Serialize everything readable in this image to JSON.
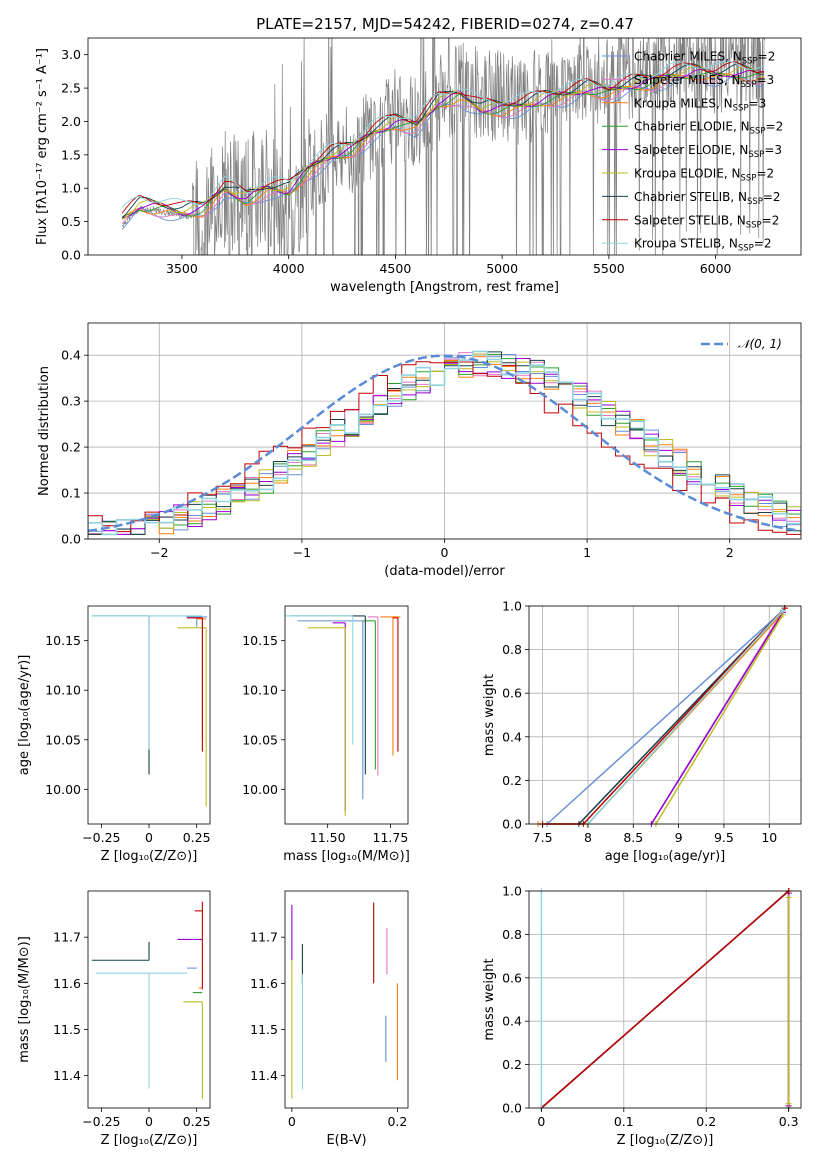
{
  "figure": {
    "title": "PLATE=2157, MJD=54242, FIBERID=0274, z=0.47",
    "colors": [
      "#6890d8",
      "#e377c2",
      "#ff7f0e",
      "#2ca02c",
      "#9400d3",
      "#bcbd22",
      "#17404b",
      "#c00000",
      "#8fd4e0"
    ]
  },
  "chart_data": [
    {
      "id": "spectrum",
      "type": "line",
      "title": "PLATE=2157, MJD=54242, FIBERID=0274, z=0.47",
      "xlabel": "wavelength [Angstrom, rest frame]",
      "ylabel": "Flux [fλ10⁻¹⁷ erg cm⁻² s⁻¹ A⁻¹]",
      "xlim": [
        3060,
        6400
      ],
      "ylim": [
        0,
        3.25
      ],
      "xticks": [
        3500,
        4000,
        4500,
        5000,
        5500,
        6000
      ],
      "yticks": [
        0.0,
        0.5,
        1.0,
        1.5,
        2.0,
        2.5,
        3.0
      ],
      "data_color": "#808080",
      "data_points": [
        [
          3220,
          0.45
        ],
        [
          3300,
          0.7
        ],
        [
          3400,
          0.65
        ],
        [
          3500,
          0.6
        ],
        [
          3600,
          0.55
        ],
        [
          3700,
          1.0
        ],
        [
          3800,
          0.9
        ],
        [
          3900,
          1.1
        ],
        [
          4000,
          0.5
        ],
        [
          4100,
          1.2
        ],
        [
          4200,
          1.6
        ],
        [
          4300,
          1.5
        ],
        [
          4400,
          1.9
        ],
        [
          4500,
          2.1
        ],
        [
          4600,
          2.0
        ],
        [
          4700,
          2.3
        ],
        [
          4800,
          2.5
        ],
        [
          4900,
          2.4
        ],
        [
          5000,
          2.4
        ],
        [
          5100,
          2.3
        ],
        [
          5200,
          2.5
        ],
        [
          5300,
          2.6
        ],
        [
          5400,
          2.7
        ],
        [
          5500,
          2.6
        ],
        [
          5600,
          2.7
        ],
        [
          5700,
          2.8
        ],
        [
          5800,
          2.9
        ],
        [
          5900,
          2.9
        ],
        [
          6000,
          2.8
        ],
        [
          6100,
          2.9
        ],
        [
          6200,
          2.9
        ]
      ],
      "model_points": [
        [
          3220,
          0.55
        ],
        [
          3300,
          0.75
        ],
        [
          3400,
          0.72
        ],
        [
          3500,
          0.65
        ],
        [
          3600,
          0.7
        ],
        [
          3700,
          1.0
        ],
        [
          3800,
          0.85
        ],
        [
          3900,
          1.0
        ],
        [
          4000,
          0.98
        ],
        [
          4100,
          1.3
        ],
        [
          4200,
          1.5
        ],
        [
          4300,
          1.6
        ],
        [
          4400,
          1.85
        ],
        [
          4500,
          2.0
        ],
        [
          4600,
          1.95
        ],
        [
          4700,
          2.3
        ],
        [
          4800,
          2.4
        ],
        [
          4900,
          2.2
        ],
        [
          5000,
          2.2
        ],
        [
          5100,
          2.25
        ],
        [
          5200,
          2.35
        ],
        [
          5300,
          2.4
        ],
        [
          5400,
          2.5
        ],
        [
          5500,
          2.45
        ],
        [
          5600,
          2.55
        ],
        [
          5700,
          2.6
        ],
        [
          5800,
          2.7
        ],
        [
          5900,
          2.75
        ],
        [
          6000,
          2.7
        ],
        [
          6100,
          2.75
        ],
        [
          6200,
          2.7
        ]
      ],
      "legend_position": "upper right",
      "series": [
        {
          "name": "Chabrier MILES, N",
          "sub": "SSP",
          "suffix": "=2"
        },
        {
          "name": "Salpeter MILES, N",
          "sub": "SSP",
          "suffix": "=3"
        },
        {
          "name": "Kroupa MILES, N",
          "sub": "SSP",
          "suffix": "=3"
        },
        {
          "name": "Chabrier ELODIE, N",
          "sub": "SSP",
          "suffix": "=2"
        },
        {
          "name": "Salpeter ELODIE, N",
          "sub": "SSP",
          "suffix": "=3"
        },
        {
          "name": "Kroupa ELODIE, N",
          "sub": "SSP",
          "suffix": "=2"
        },
        {
          "name": "Chabrier STELIB, N",
          "sub": "SSP",
          "suffix": "=2"
        },
        {
          "name": "Salpeter STELIB, N",
          "sub": "SSP",
          "suffix": "=2"
        },
        {
          "name": "Kroupa STELIB, N",
          "sub": "SSP",
          "suffix": "=2"
        }
      ]
    },
    {
      "id": "residuals",
      "type": "line",
      "xlabel": "(data-model)/error",
      "ylabel": "Normed distribution",
      "xlim": [
        -2.5,
        2.5
      ],
      "ylim": [
        0,
        0.47
      ],
      "xticks": [
        -2,
        -1,
        0,
        1,
        2
      ],
      "yticks": [
        0.0,
        0.1,
        0.2,
        0.3,
        0.4
      ],
      "grid": true,
      "legend_label": "𝒩(0, 1)",
      "legend_position": "upper right",
      "gaussian": {
        "mean": 0,
        "sigma": 1,
        "color": "#5b8ad6"
      },
      "hist_profile": {
        "bin_width": 0.1,
        "center": 0.3,
        "sigma": 1.05,
        "peak": 0.38
      }
    },
    {
      "id": "age_vs_Z",
      "type": "scatter",
      "xlabel": "Z [log₁₀(Z/Z⊙)]",
      "ylabel": "age  [log₁₀(age/yr)]",
      "xlim": [
        -0.32,
        0.32
      ],
      "ylim": [
        9.965,
        10.185
      ],
      "xticks": [
        -0.25,
        0.0,
        0.25
      ],
      "yticks": [
        10.0,
        10.05,
        10.1,
        10.15
      ],
      "grid": false,
      "points": [
        {
          "x": 0.25,
          "y": 10.174,
          "xerr": [
            0.055,
            0.055
          ],
          "yerr": [
            0.01,
            0.0
          ],
          "c": 0
        },
        {
          "x": 0.28,
          "y": 10.172,
          "xerr": [
            0.03,
            0.02
          ],
          "yerr": [
            0.12,
            0.0
          ],
          "c": 2
        },
        {
          "x": 0.0,
          "y": 10.175,
          "xerr": [
            0.3,
            0.0
          ],
          "yerr": [
            0.16,
            0.0
          ],
          "c": 6
        },
        {
          "x": 0.3,
          "y": 10.163,
          "xerr": [
            0.15,
            0.0
          ],
          "yerr": [
            0.18,
            0.0
          ],
          "c": 5
        },
        {
          "x": 0.28,
          "y": 10.173,
          "xerr": [
            0.08,
            0.0
          ],
          "yerr": [
            0.135,
            0.0
          ],
          "c": 7
        },
        {
          "x": 0.0,
          "y": 10.175,
          "xerr": [
            0.3,
            0.28
          ],
          "yerr": [
            0.135,
            0.0
          ],
          "c": 8
        }
      ]
    },
    {
      "id": "age_vs_mass",
      "type": "scatter",
      "xlabel": "mass [log₁₀(M/M⊙)]",
      "ylabel": "",
      "xlim": [
        11.33,
        11.82
      ],
      "ylim": [
        9.965,
        10.185
      ],
      "xticks": [
        11.5,
        11.75
      ],
      "xtick_labels": [
        "11.50",
        "11.75"
      ],
      "yticks": [
        10.0,
        10.05,
        10.1,
        10.15
      ],
      "grid": false,
      "points": [
        {
          "x": 11.64,
          "y": 10.17,
          "xerr": [
            0.26,
            0.0
          ],
          "yerr": [
            0.18,
            0.0
          ],
          "c": 0
        },
        {
          "x": 11.7,
          "y": 10.174,
          "xerr": [
            0.04,
            0.0
          ],
          "yerr": [
            0.16,
            0.0
          ],
          "c": 1
        },
        {
          "x": 11.76,
          "y": 10.174,
          "xerr": [
            0.05,
            0.03
          ],
          "yerr": [
            0.14,
            0.0
          ],
          "c": 2
        },
        {
          "x": 11.69,
          "y": 10.17,
          "xerr": [
            0.05,
            0.0
          ],
          "yerr": [
            0.15,
            0.0
          ],
          "c": 3
        },
        {
          "x": 11.57,
          "y": 10.168,
          "xerr": [
            0.05,
            0.0
          ],
          "yerr": [
            0.19,
            0.0
          ],
          "c": 4
        },
        {
          "x": 11.57,
          "y": 10.163,
          "xerr": [
            0.15,
            0.0
          ],
          "yerr": [
            0.19,
            0.0
          ],
          "c": 5
        },
        {
          "x": 11.65,
          "y": 10.175,
          "xerr": [
            0.3,
            0.0
          ],
          "yerr": [
            0.16,
            0.0
          ],
          "c": 6
        },
        {
          "x": 11.78,
          "y": 10.173,
          "xerr": [
            0.02,
            0.0
          ],
          "yerr": [
            0.135,
            0.0
          ],
          "c": 7
        },
        {
          "x": 11.6,
          "y": 10.175,
          "xerr": [
            0.28,
            0.0
          ],
          "yerr": [
            0.13,
            0.0
          ],
          "c": 8
        }
      ]
    },
    {
      "id": "massweight_vs_age",
      "type": "line",
      "xlabel": "age  [log₁₀(age/yr)]",
      "ylabel": "mass weight",
      "xlim": [
        7.35,
        10.35
      ],
      "ylim": [
        0,
        1
      ],
      "xticks": [
        7.5,
        8.0,
        8.5,
        9.0,
        9.5,
        10.0
      ],
      "yticks": [
        0.0,
        0.2,
        0.4,
        0.6,
        0.8,
        1.0
      ],
      "grid": true,
      "series": [
        {
          "c": 0,
          "points": [
            [
              7.55,
              0.0
            ],
            [
              10.15,
              0.98
            ]
          ]
        },
        {
          "c": 1,
          "points": [
            [
              8.7,
              0.0
            ],
            [
              10.17,
              0.99
            ]
          ]
        },
        {
          "c": 2,
          "points": [
            [
              7.45,
              0.0
            ],
            [
              8.0,
              0.0
            ],
            [
              10.15,
              0.97
            ]
          ]
        },
        {
          "c": 3,
          "points": [
            [
              8.0,
              0.0
            ],
            [
              10.15,
              0.98
            ]
          ]
        },
        {
          "c": 4,
          "points": [
            [
              8.7,
              0.0
            ],
            [
              10.15,
              0.97
            ]
          ]
        },
        {
          "c": 5,
          "points": [
            [
              8.75,
              0.0
            ],
            [
              10.15,
              0.96
            ]
          ]
        },
        {
          "c": 6,
          "points": [
            [
              7.9,
              0.0
            ],
            [
              10.17,
              0.99
            ]
          ]
        },
        {
          "c": 7,
          "points": [
            [
              7.5,
              0.0
            ],
            [
              7.95,
              0.0
            ],
            [
              10.17,
              0.99
            ]
          ]
        },
        {
          "c": 8,
          "points": [
            [
              8.0,
              0.0
            ],
            [
              10.15,
              0.98
            ]
          ]
        }
      ]
    },
    {
      "id": "mass_vs_Z",
      "type": "scatter",
      "xlabel": "Z [log₁₀(Z/Z⊙)]",
      "ylabel": "mass [log₁₀(M/M⊙)]",
      "xlim": [
        -0.32,
        0.32
      ],
      "ylim": [
        11.33,
        11.8
      ],
      "xticks": [
        -0.25,
        0.0,
        0.25
      ],
      "yticks": [
        11.4,
        11.5,
        11.6,
        11.7
      ],
      "grid": false,
      "points": [
        {
          "x": 0.25,
          "y": 11.633,
          "xerr": [
            0.05,
            0.0
          ],
          "yerr": [
            0.0,
            0.0
          ],
          "c": 0
        },
        {
          "x": 0.28,
          "y": 11.59,
          "xerr": [
            0.02,
            0.0
          ],
          "yerr": [
            0.0,
            0.0
          ],
          "c": 2
        },
        {
          "x": 0.28,
          "y": 11.58,
          "xerr": [
            0.05,
            0.0
          ],
          "yerr": [
            0.0,
            0.0
          ],
          "c": 3
        },
        {
          "x": 0.28,
          "y": 11.695,
          "xerr": [
            0.13,
            0.0
          ],
          "yerr": [
            0.0,
            0.0
          ],
          "c": 4
        },
        {
          "x": 0.28,
          "y": 11.56,
          "xerr": [
            0.1,
            0.0
          ],
          "yerr": [
            0.21,
            0.0
          ],
          "c": 5
        },
        {
          "x": 0.0,
          "y": 11.65,
          "xerr": [
            0.3,
            0.0
          ],
          "yerr": [
            0.0,
            0.04
          ],
          "c": 6
        },
        {
          "x": 0.28,
          "y": 11.757,
          "xerr": [
            0.04,
            0.0
          ],
          "yerr": [
            0.17,
            0.02
          ],
          "c": 7
        },
        {
          "x": 0.0,
          "y": 11.622,
          "xerr": [
            0.28,
            0.2
          ],
          "yerr": [
            0.25,
            0.0
          ],
          "c": 8
        }
      ]
    },
    {
      "id": "mass_vs_ebv",
      "type": "scatter",
      "xlabel": "E(B-V)",
      "ylabel": "",
      "xlim": [
        -0.013,
        0.22
      ],
      "ylim": [
        11.33,
        11.8
      ],
      "xticks": [
        0.0,
        0.2
      ],
      "xtick_labels": [
        "0",
        "0.2"
      ],
      "yticks": [
        11.4,
        11.5,
        11.6,
        11.7
      ],
      "grid": false,
      "points": [
        {
          "x": 0.178,
          "y": 11.43,
          "xerr": [
            0,
            0
          ],
          "yerr": [
            0.0,
            0.1
          ],
          "c": 0
        },
        {
          "x": 0.18,
          "y": 11.62,
          "xerr": [
            0,
            0
          ],
          "yerr": [
            0.0,
            0.1
          ],
          "c": 1
        },
        {
          "x": 0.2,
          "y": 11.39,
          "xerr": [
            0,
            0
          ],
          "yerr": [
            0.0,
            0.21
          ],
          "c": 2
        },
        {
          "x": 0.0,
          "y": 11.65,
          "xerr": [
            0,
            0
          ],
          "yerr": [
            0.0,
            0.12
          ],
          "c": 4
        },
        {
          "x": 0.0,
          "y": 11.35,
          "xerr": [
            0,
            0
          ],
          "yerr": [
            0.0,
            0.3
          ],
          "c": 5
        },
        {
          "x": 0.02,
          "y": 11.6,
          "xerr": [
            0,
            0
          ],
          "yerr": [
            0.0,
            0.085
          ],
          "c": 6
        },
        {
          "x": 0.155,
          "y": 11.6,
          "xerr": [
            0,
            0
          ],
          "yerr": [
            0.0,
            0.175
          ],
          "c": 7
        },
        {
          "x": 0.02,
          "y": 11.37,
          "xerr": [
            0,
            0
          ],
          "yerr": [
            0.0,
            0.25
          ],
          "c": 8
        }
      ]
    },
    {
      "id": "massweight_vs_Z",
      "type": "line",
      "xlabel": "Z [log₁₀(Z/Z⊙)]",
      "ylabel": "mass weight",
      "xlim": [
        -0.015,
        0.315
      ],
      "ylim": [
        0,
        1
      ],
      "xticks": [
        0.0,
        0.1,
        0.2,
        0.3
      ],
      "yticks": [
        0.0,
        0.2,
        0.4,
        0.6,
        0.8,
        1.0
      ],
      "grid": true,
      "series": [
        {
          "c": 0,
          "points": [
            [
              0.0,
              0.0
            ],
            [
              0.3,
              1.0
            ]
          ]
        },
        {
          "c": 1,
          "points": [
            [
              0.3,
              0.01
            ],
            [
              0.3,
              0.99
            ]
          ]
        },
        {
          "c": 2,
          "points": [
            [
              0.3,
              0.0
            ],
            [
              0.3,
              1.0
            ]
          ]
        },
        {
          "c": 3,
          "points": [
            [
              0.3,
              0.0
            ],
            [
              0.3,
              1.0
            ]
          ]
        },
        {
          "c": 4,
          "points": [
            [
              0.3,
              0.01
            ],
            [
              0.3,
              0.99
            ]
          ]
        },
        {
          "c": 5,
          "points": [
            [
              0.3,
              0.02
            ],
            [
              0.3,
              0.97
            ]
          ]
        },
        {
          "c": 6,
          "points": [
            [
              0.0,
              0.0
            ],
            [
              0.3,
              1.0
            ]
          ]
        },
        {
          "c": 7,
          "points": [
            [
              0.0,
              0.0
            ],
            [
              0.3,
              1.0
            ]
          ]
        },
        {
          "c": 8,
          "points": [
            [
              0.0,
              0.0
            ],
            [
              0.0,
              1.0
            ]
          ]
        }
      ]
    }
  ]
}
